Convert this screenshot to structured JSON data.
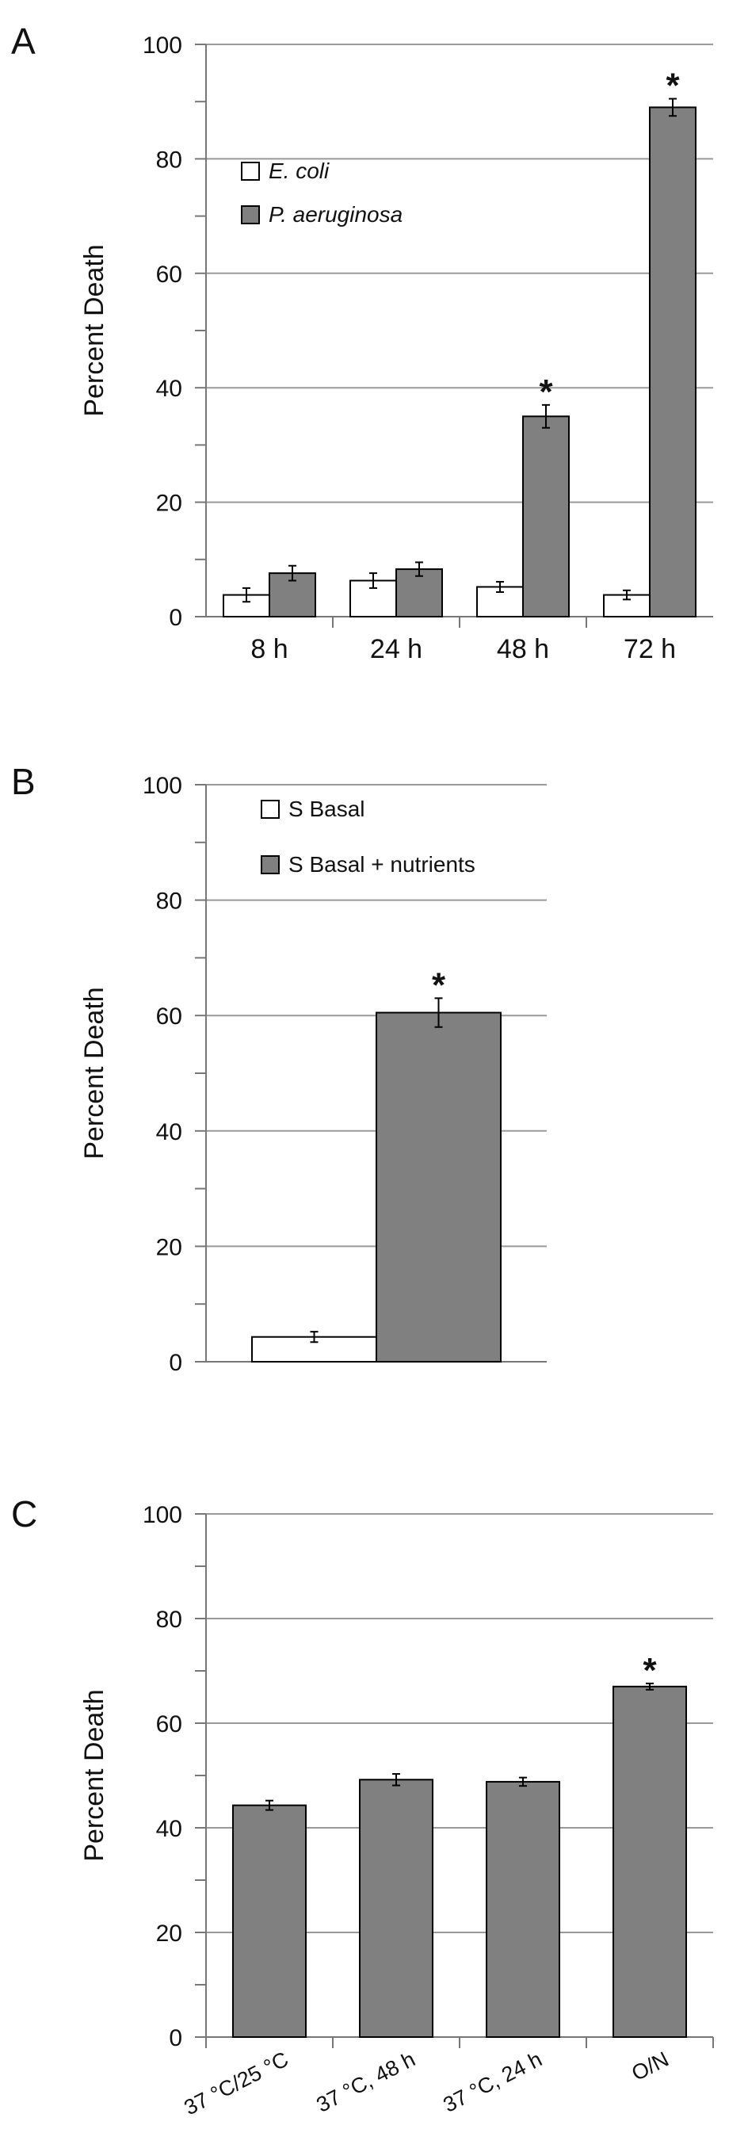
{
  "panels": [
    {
      "letter": "A"
    },
    {
      "letter": "B"
    },
    {
      "letter": "C"
    }
  ],
  "chart_data": [
    {
      "type": "bar",
      "panel": "A",
      "ylabel": "Percent Death",
      "xlabel": "",
      "ylim": [
        0,
        100
      ],
      "yticks": [
        "0",
        "20",
        "40",
        "60",
        "80",
        "100"
      ],
      "grid": true,
      "legend_position": "top-left",
      "categories": [
        "8 h",
        "24 h",
        "48 h",
        "72 h"
      ],
      "series": [
        {
          "name": "E. coli",
          "color": "#ffffff",
          "values": [
            3.8,
            6.3,
            5.2,
            3.8
          ],
          "errors": [
            1.2,
            1.3,
            0.9,
            0.8
          ]
        },
        {
          "name": "P. aeruginosa",
          "color": "#808080",
          "values": [
            7.6,
            8.3,
            35.0,
            89.0
          ],
          "errors": [
            1.3,
            1.2,
            2.0,
            1.5
          ]
        }
      ],
      "significance": [
        "",
        "",
        "*",
        "*"
      ]
    },
    {
      "type": "bar",
      "panel": "B",
      "ylabel": "Percent Death",
      "xlabel": "",
      "ylim": [
        0,
        100
      ],
      "yticks": [
        "0",
        "20",
        "40",
        "60",
        "80",
        "100"
      ],
      "grid": true,
      "legend_position": "top-left",
      "categories": [
        ""
      ],
      "series": [
        {
          "name": "S Basal",
          "color": "#ffffff",
          "values": [
            4.3
          ],
          "errors": [
            0.9
          ]
        },
        {
          "name": "S Basal + nutrients",
          "color": "#808080",
          "values": [
            60.5
          ],
          "errors": [
            2.5
          ]
        }
      ],
      "significance": [
        "*"
      ]
    },
    {
      "type": "bar",
      "panel": "C",
      "ylabel": "Percent Death",
      "xlabel": "",
      "ylim": [
        0,
        100
      ],
      "yticks": [
        "0",
        "20",
        "40",
        "60",
        "80",
        "100"
      ],
      "grid": true,
      "categories": [
        "37 °C/25 °C",
        "37 °C, 48 h",
        "37 °C, 24 h",
        "O/N"
      ],
      "series": [
        {
          "name": "",
          "color": "#808080",
          "values": [
            44.3,
            49.2,
            48.8,
            67.0
          ],
          "errors": [
            0.9,
            1.1,
            0.8,
            0.6
          ]
        }
      ],
      "significance": [
        "",
        "",
        "",
        "*"
      ]
    }
  ]
}
